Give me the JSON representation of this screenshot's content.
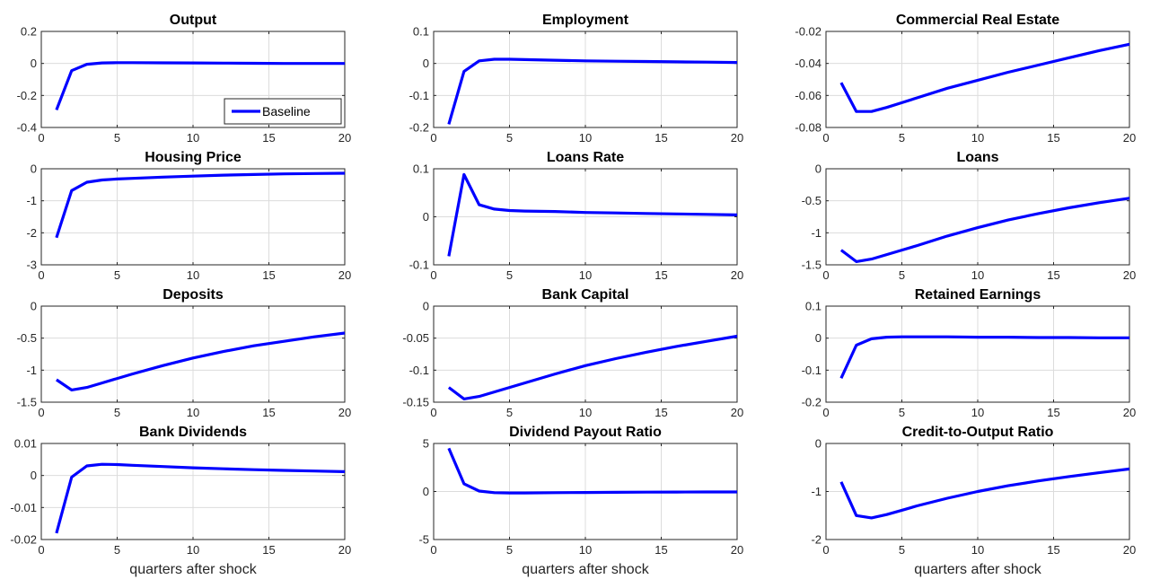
{
  "figure": {
    "line_color": "#0000ff",
    "xlabel": "quarters after shock",
    "legend": {
      "label": "Baseline",
      "subplot": 0,
      "placement": "lower-right"
    }
  },
  "chart_data": [
    {
      "type": "line",
      "title": "Output",
      "xlim": [
        0,
        20
      ],
      "ylim": [
        -0.4,
        0.2
      ],
      "xticks": [
        0,
        5,
        10,
        15,
        20
      ],
      "yticks": [
        0.2,
        0,
        -0.2,
        -0.4
      ],
      "ytick_labels": [
        "0.2",
        "0",
        "-0.2",
        "-0.4"
      ],
      "xlabel": "",
      "series": [
        {
          "name": "Baseline",
          "x": [
            1,
            2,
            3,
            4,
            5,
            6,
            8,
            10,
            12,
            14,
            16,
            18,
            20
          ],
          "y": [
            -0.29,
            -0.045,
            -0.005,
            0.003,
            0.005,
            0.005,
            0.004,
            0.003,
            0.002,
            0.001,
            0.0,
            0.0,
            0.0
          ]
        }
      ]
    },
    {
      "type": "line",
      "title": "Employment",
      "xlim": [
        0,
        20
      ],
      "ylim": [
        -0.2,
        0.1
      ],
      "xticks": [
        0,
        5,
        10,
        15,
        20
      ],
      "yticks": [
        0.1,
        0,
        -0.1,
        -0.2
      ],
      "ytick_labels": [
        "0.1",
        "0",
        "-0.1",
        "-0.2"
      ],
      "xlabel": "",
      "series": [
        {
          "name": "Baseline",
          "x": [
            1,
            2,
            3,
            4,
            5,
            6,
            8,
            10,
            12,
            14,
            16,
            18,
            20
          ],
          "y": [
            -0.19,
            -0.025,
            0.008,
            0.013,
            0.013,
            0.012,
            0.01,
            0.008,
            0.007,
            0.006,
            0.005,
            0.004,
            0.003
          ]
        }
      ]
    },
    {
      "type": "line",
      "title": "Commercial Real Estate",
      "xlim": [
        0,
        20
      ],
      "ylim": [
        -0.08,
        -0.02
      ],
      "xticks": [
        0,
        5,
        10,
        15,
        20
      ],
      "yticks": [
        -0.02,
        -0.04,
        -0.06,
        -0.08
      ],
      "ytick_labels": [
        "-0.02",
        "-0.04",
        "-0.06",
        "-0.08"
      ],
      "xlabel": "",
      "series": [
        {
          "name": "Baseline",
          "x": [
            1,
            2,
            3,
            4,
            5,
            6,
            8,
            10,
            12,
            14,
            16,
            18,
            20
          ],
          "y": [
            -0.052,
            -0.07,
            -0.07,
            -0.0675,
            -0.0645,
            -0.0615,
            -0.0555,
            -0.0505,
            -0.0455,
            -0.041,
            -0.0365,
            -0.032,
            -0.028
          ]
        }
      ]
    },
    {
      "type": "line",
      "title": "Housing Price",
      "xlim": [
        0,
        20
      ],
      "ylim": [
        -3,
        0
      ],
      "xticks": [
        0,
        5,
        10,
        15,
        20
      ],
      "yticks": [
        0,
        -1,
        -2,
        -3
      ],
      "ytick_labels": [
        "0",
        "-1",
        "-2",
        "-3"
      ],
      "xlabel": "",
      "series": [
        {
          "name": "Baseline",
          "x": [
            1,
            2,
            3,
            4,
            5,
            6,
            8,
            10,
            12,
            14,
            16,
            18,
            20
          ],
          "y": [
            -2.15,
            -0.68,
            -0.42,
            -0.35,
            -0.32,
            -0.3,
            -0.26,
            -0.23,
            -0.2,
            -0.18,
            -0.16,
            -0.15,
            -0.14
          ]
        }
      ]
    },
    {
      "type": "line",
      "title": "Loans Rate",
      "xlim": [
        0,
        20
      ],
      "ylim": [
        -0.1,
        0.1
      ],
      "xticks": [
        0,
        5,
        10,
        15,
        20
      ],
      "yticks": [
        0.1,
        0,
        -0.1
      ],
      "ytick_labels": [
        "0.1",
        "0",
        "-0.1"
      ],
      "xlabel": "",
      "series": [
        {
          "name": "Baseline",
          "x": [
            1,
            2,
            3,
            4,
            5,
            6,
            8,
            10,
            12,
            14,
            16,
            18,
            20
          ],
          "y": [
            -0.082,
            0.088,
            0.025,
            0.016,
            0.013,
            0.012,
            0.011,
            0.009,
            0.008,
            0.007,
            0.006,
            0.005,
            0.004
          ]
        }
      ]
    },
    {
      "type": "line",
      "title": "Loans",
      "xlim": [
        0,
        20
      ],
      "ylim": [
        -1.5,
        0
      ],
      "xticks": [
        0,
        5,
        10,
        15,
        20
      ],
      "yticks": [
        0,
        -0.5,
        -1,
        -1.5
      ],
      "ytick_labels": [
        "0",
        "-0.5",
        "-1",
        "-1.5"
      ],
      "xlabel": "",
      "series": [
        {
          "name": "Baseline",
          "x": [
            1,
            2,
            3,
            4,
            5,
            6,
            8,
            10,
            12,
            14,
            16,
            18,
            20
          ],
          "y": [
            -1.27,
            -1.45,
            -1.41,
            -1.34,
            -1.27,
            -1.2,
            -1.05,
            -0.92,
            -0.8,
            -0.7,
            -0.61,
            -0.53,
            -0.46
          ]
        }
      ]
    },
    {
      "type": "line",
      "title": "Deposits",
      "xlim": [
        0,
        20
      ],
      "ylim": [
        -1.5,
        0
      ],
      "xticks": [
        0,
        5,
        10,
        15,
        20
      ],
      "yticks": [
        0,
        -0.5,
        -1,
        -1.5
      ],
      "ytick_labels": [
        "0",
        "-0.5",
        "-1",
        "-1.5"
      ],
      "xlabel": "",
      "series": [
        {
          "name": "Baseline",
          "x": [
            1,
            2,
            3,
            4,
            5,
            6,
            8,
            10,
            12,
            14,
            16,
            18,
            20
          ],
          "y": [
            -1.15,
            -1.31,
            -1.27,
            -1.2,
            -1.13,
            -1.06,
            -0.93,
            -0.81,
            -0.71,
            -0.62,
            -0.55,
            -0.48,
            -0.42
          ]
        }
      ]
    },
    {
      "type": "line",
      "title": "Bank Capital",
      "xlim": [
        0,
        20
      ],
      "ylim": [
        -0.15,
        0
      ],
      "xticks": [
        0,
        5,
        10,
        15,
        20
      ],
      "yticks": [
        0,
        -0.05,
        -0.1,
        -0.15
      ],
      "ytick_labels": [
        "0",
        "-0.05",
        "-0.1",
        "-0.15"
      ],
      "xlabel": "",
      "series": [
        {
          "name": "Baseline",
          "x": [
            1,
            2,
            3,
            4,
            5,
            6,
            8,
            10,
            12,
            14,
            16,
            18,
            20
          ],
          "y": [
            -0.127,
            -0.145,
            -0.141,
            -0.134,
            -0.127,
            -0.12,
            -0.106,
            -0.093,
            -0.082,
            -0.072,
            -0.063,
            -0.055,
            -0.047
          ]
        }
      ]
    },
    {
      "type": "line",
      "title": "Retained Earnings",
      "xlim": [
        0,
        20
      ],
      "ylim": [
        -0.2,
        0.1
      ],
      "xticks": [
        0,
        5,
        10,
        15,
        20
      ],
      "yticks": [
        0.1,
        0,
        -0.1,
        -0.2
      ],
      "ytick_labels": [
        "0.1",
        "0",
        "-0.1",
        "-0.2"
      ],
      "xlabel": "",
      "series": [
        {
          "name": "Baseline",
          "x": [
            1,
            2,
            3,
            4,
            5,
            6,
            8,
            10,
            12,
            14,
            16,
            18,
            20
          ],
          "y": [
            -0.125,
            -0.022,
            -0.002,
            0.003,
            0.004,
            0.004,
            0.004,
            0.003,
            0.003,
            0.002,
            0.002,
            0.001,
            0.001
          ]
        }
      ]
    },
    {
      "type": "line",
      "title": "Bank Dividends",
      "xlim": [
        0,
        20
      ],
      "ylim": [
        -0.02,
        0.01
      ],
      "xticks": [
        0,
        5,
        10,
        15,
        20
      ],
      "yticks": [
        0.01,
        0,
        -0.01,
        -0.02
      ],
      "ytick_labels": [
        "0.01",
        "0",
        "-0.01",
        "-0.02"
      ],
      "xlabel": "quarters after shock",
      "series": [
        {
          "name": "Baseline",
          "x": [
            1,
            2,
            3,
            4,
            5,
            6,
            8,
            10,
            12,
            14,
            16,
            18,
            20
          ],
          "y": [
            -0.018,
            -0.0005,
            0.003,
            0.0035,
            0.0034,
            0.0032,
            0.0028,
            0.0024,
            0.0021,
            0.0018,
            0.0016,
            0.0014,
            0.0012
          ]
        }
      ]
    },
    {
      "type": "line",
      "title": "Dividend Payout Ratio",
      "xlim": [
        0,
        20
      ],
      "ylim": [
        -5,
        5
      ],
      "xticks": [
        0,
        5,
        10,
        15,
        20
      ],
      "yticks": [
        5,
        0,
        -5
      ],
      "ytick_labels": [
        "5",
        "0",
        "-5"
      ],
      "xlabel": "quarters after shock",
      "series": [
        {
          "name": "Baseline",
          "x": [
            1,
            2,
            3,
            4,
            5,
            6,
            8,
            10,
            12,
            14,
            16,
            18,
            20
          ],
          "y": [
            4.5,
            0.8,
            0.05,
            -0.12,
            -0.15,
            -0.15,
            -0.12,
            -0.1,
            -0.08,
            -0.07,
            -0.06,
            -0.05,
            -0.05
          ]
        }
      ]
    },
    {
      "type": "line",
      "title": "Credit-to-Output Ratio",
      "xlim": [
        0,
        20
      ],
      "ylim": [
        -2,
        0
      ],
      "xticks": [
        0,
        5,
        10,
        15,
        20
      ],
      "yticks": [
        0,
        -1,
        -2
      ],
      "ytick_labels": [
        "0",
        "-1",
        "-2"
      ],
      "xlabel": "quarters after shock",
      "series": [
        {
          "name": "Baseline",
          "x": [
            1,
            2,
            3,
            4,
            5,
            6,
            8,
            10,
            12,
            14,
            16,
            18,
            20
          ],
          "y": [
            -0.8,
            -1.5,
            -1.55,
            -1.48,
            -1.39,
            -1.3,
            -1.14,
            -1.0,
            -0.88,
            -0.78,
            -0.69,
            -0.61,
            -0.53
          ]
        }
      ]
    }
  ]
}
